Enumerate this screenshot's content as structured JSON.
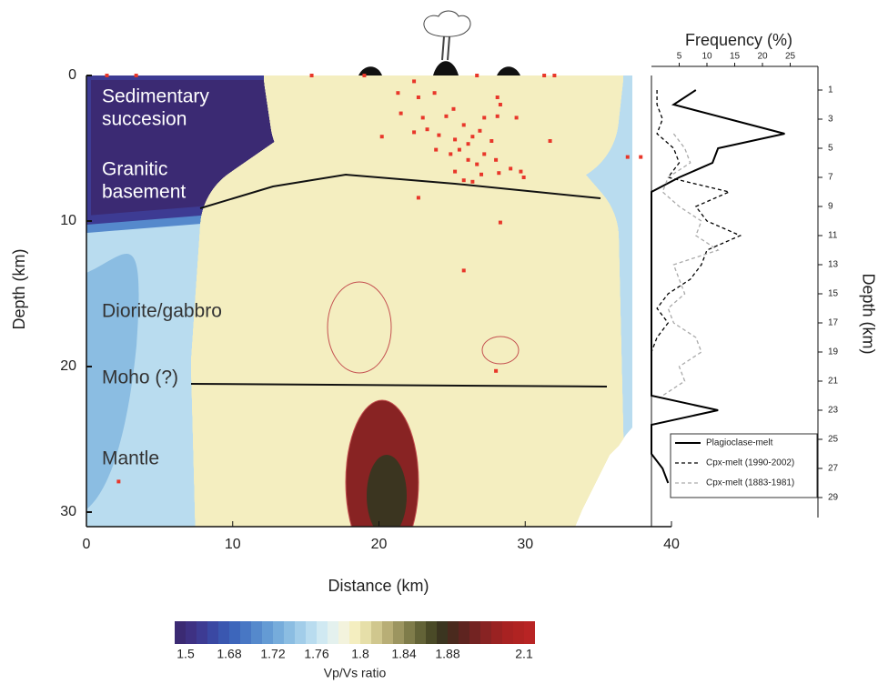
{
  "chart_data": [
    {
      "type": "scatter",
      "xlabel": "Distance (km)",
      "ylabel": "Depth (km)",
      "xlim": [
        0,
        40
      ],
      "ylim": [
        0,
        31
      ],
      "y_inverted": true,
      "xticks": [
        0,
        10,
        20,
        30,
        40
      ],
      "yticks": [
        0,
        10,
        20,
        30
      ],
      "color": "#e8372a",
      "annotations": [
        "Sedimentary",
        "succesion",
        "Granitic",
        "basement",
        "Diorite/gabbro",
        "Moho (?)",
        "Mantle"
      ],
      "x": [
        1.4,
        3.4,
        15.4,
        19,
        22.4,
        21.3,
        22.7,
        23.8,
        26.7,
        28.1,
        28.3,
        31.3,
        32,
        21.5,
        23,
        24.6,
        25.1,
        25.8,
        27.2,
        28.1,
        29.4,
        20.2,
        22.4,
        23.3,
        24.1,
        25.2,
        26.1,
        26.4,
        26.9,
        27.7,
        31.7,
        23.9,
        24.9,
        25.5,
        26.1,
        26.7,
        27.2,
        28,
        28.2,
        29,
        29.9,
        25.2,
        25.8,
        26.4,
        27,
        37,
        37.9,
        22.7,
        28.3,
        25.8,
        28,
        2.2,
        29.7
      ],
      "y": [
        0,
        0,
        0,
        0,
        0.4,
        1.2,
        1.5,
        1.2,
        0,
        1.5,
        2,
        0,
        0,
        2.6,
        2.9,
        2.8,
        2.3,
        3.4,
        2.9,
        2.8,
        2.9,
        4.2,
        3.9,
        3.7,
        4.1,
        4.4,
        4.7,
        4.2,
        3.8,
        4.5,
        4.5,
        5.1,
        5.4,
        5.1,
        5.8,
        6.1,
        5.4,
        5.8,
        6.7,
        6.4,
        7,
        6.6,
        7.2,
        7.3,
        6.8,
        5.6,
        5.6,
        8.4,
        10.1,
        13.4,
        20.3,
        27.9,
        6.6
      ]
    },
    {
      "type": "line",
      "xlabel": "Frequency (%)",
      "ylabel": "Depth (km)",
      "xlim": [
        0,
        30
      ],
      "ylim": [
        0,
        31
      ],
      "y_inverted": true,
      "xticks": [
        5,
        10,
        15,
        20,
        25
      ],
      "yticks": [
        1,
        3,
        5,
        7,
        9,
        11,
        13,
        15,
        17,
        19,
        21,
        23,
        25,
        27,
        29
      ],
      "y": [
        1,
        2,
        3,
        4,
        5,
        6,
        7,
        8,
        9,
        10,
        11,
        12,
        13,
        14,
        15,
        16,
        17,
        18,
        19,
        20,
        21,
        22,
        23,
        24,
        25,
        26,
        27,
        28,
        29
      ],
      "legend": "lower right",
      "series": [
        {
          "name": "Plagioclase-melt",
          "color": "#000000",
          "dash": "solid",
          "values": [
            8,
            4,
            14,
            24,
            12,
            11,
            5,
            0,
            0,
            0,
            0,
            0,
            0,
            0,
            0,
            0,
            0,
            0,
            0,
            0,
            0,
            0,
            12,
            0,
            0,
            0,
            2,
            3,
            null
          ]
        },
        {
          "name": "Cpx-melt (1990-2002)",
          "color": "#000000",
          "dash": "dashed",
          "values": [
            1,
            1,
            2,
            1,
            4,
            5,
            3,
            14,
            8,
            10,
            16,
            10,
            9,
            7,
            3,
            1,
            3,
            1,
            0,
            0,
            null,
            null,
            null,
            null,
            null,
            null,
            null,
            null,
            null
          ]
        },
        {
          "name": "Cpx-melt (1883-1981)",
          "color": "#aaaaaa",
          "dash": "dashed",
          "values": [
            null,
            null,
            null,
            4,
            6,
            7,
            3,
            2,
            5,
            9,
            8,
            12,
            4,
            5,
            6,
            3,
            4,
            8,
            9,
            5,
            6,
            2,
            null,
            null,
            null,
            null,
            null,
            null,
            null
          ]
        }
      ]
    },
    {
      "type": "colorbar",
      "label": "Vp/Vs ratio",
      "colors": [
        "#3b2a73",
        "#3e3183",
        "#3d3b93",
        "#3a48a3",
        "#3a57b0",
        "#3d66bb",
        "#4877c4",
        "#5589cc",
        "#649bd4",
        "#76acdb",
        "#8bbde2",
        "#a2cde9",
        "#b9dcef",
        "#d0e9f2",
        "#e4f1ee",
        "#f3f3dd",
        "#f4eec0",
        "#e6dfa9",
        "#d0c78e",
        "#b8ae76",
        "#9c9560",
        "#7f7c4a",
        "#636337",
        "#4a4a27",
        "#3b3520",
        "#4a2a1e",
        "#5e2420",
        "#732322",
        "#882323",
        "#9a2222",
        "#a82222",
        "#b02322",
        "#b82424"
      ],
      "ticks": [
        1.5,
        1.68,
        1.72,
        1.76,
        1.8,
        1.84,
        1.88,
        2.1
      ]
    }
  ]
}
